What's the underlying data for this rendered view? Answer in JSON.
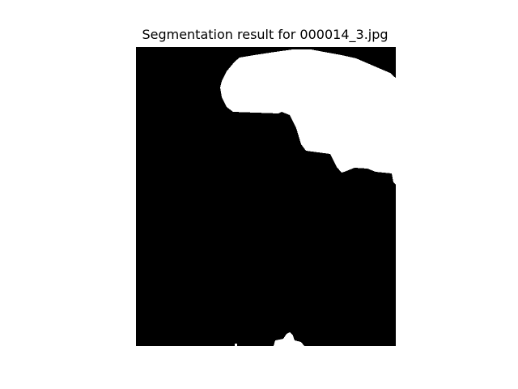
{
  "figure": {
    "title": "Segmentation result for 000014_3.jpg"
  },
  "image": {
    "content": "binary segmentation mask",
    "background_color": "#000000",
    "foreground_color": "#ffffff",
    "page_background_color": "#ffffff"
  }
}
